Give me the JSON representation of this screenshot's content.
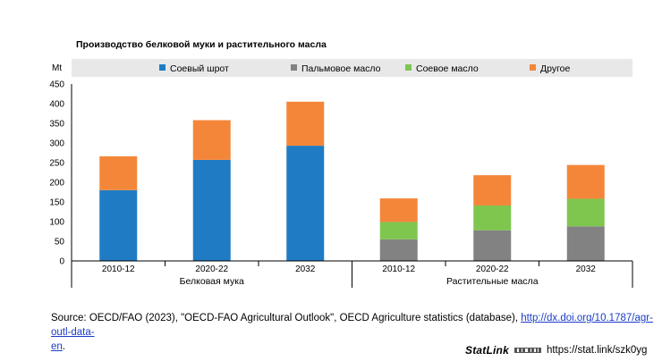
{
  "chart_data": {
    "type": "bar",
    "stacked": true,
    "title": "Производство белковой муки и растительного масла",
    "ylabel": "Mt",
    "ylim": [
      0,
      450
    ],
    "yticks": [
      0,
      50,
      100,
      150,
      200,
      250,
      300,
      350,
      400,
      450
    ],
    "legend_position": "top",
    "groups": [
      {
        "label": "Белковая мука",
        "categories": [
          "2010-12",
          "2020-22",
          "2032"
        ]
      },
      {
        "label": "Растительные масла",
        "categories": [
          "2010-12",
          "2020-22",
          "2032"
        ]
      }
    ],
    "series": [
      {
        "name": "Соевый шрот",
        "color": "#1f7cc4",
        "values": [
          180,
          257,
          293,
          0,
          0,
          0
        ]
      },
      {
        "name": "Пальмовое масло",
        "color": "#828282",
        "values": [
          0,
          0,
          0,
          55,
          78,
          88
        ]
      },
      {
        "name": "Соевое масло",
        "color": "#7fc64f",
        "values": [
          0,
          0,
          0,
          44,
          63,
          70
        ]
      },
      {
        "name": "Другое",
        "color": "#f4863a",
        "values": [
          86,
          101,
          112,
          60,
          77,
          86
        ]
      }
    ]
  },
  "source": {
    "prefix": "Source: OECD/FAO (2023), \"OECD-FAO Agricultural Outlook\", OECD Agriculture statistics (database), ",
    "link_text_1": "http://dx.doi.org/10.1787/agr-outl-data-",
    "link_text_2": "en",
    "suffix": "."
  },
  "statlink": {
    "logo": "StatLink",
    "url": "https://stat.link/szk0yg"
  }
}
